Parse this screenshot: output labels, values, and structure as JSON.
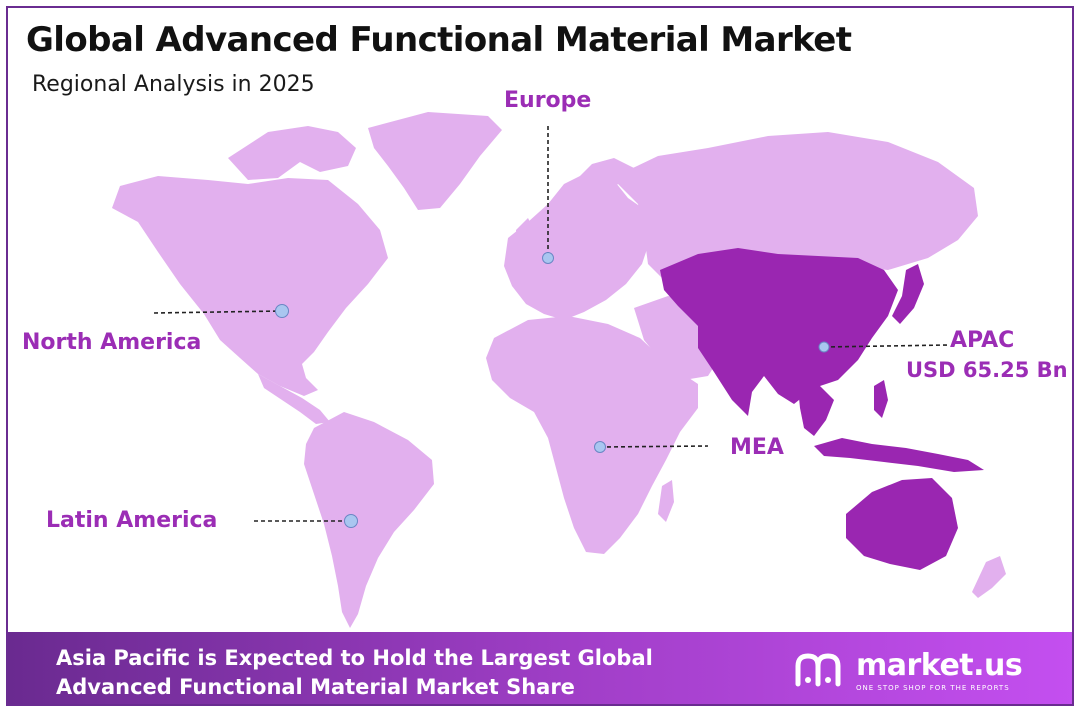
{
  "title": "Global Advanced Functional Material Market",
  "subtitle": "Regional Analysis in 2025",
  "regions": {
    "europe": "Europe",
    "north_america": "North America",
    "latin_america": "Latin America",
    "mea": "MEA",
    "apac": "APAC",
    "apac_value": "USD 65.25 Bn"
  },
  "highlighted_region": "APAC",
  "colors": {
    "land": "#e2b0ee",
    "highlight": "#9a26b1",
    "label": "#9b2db5",
    "border": "#6a2c91",
    "marker": "#a9c6f0"
  },
  "banner": {
    "line1": "Asia Pacific is Expected to Hold the Largest Global",
    "line2": "Advanced Functional Material Market Share"
  },
  "brand": {
    "name": "market.us",
    "tagline": "ONE STOP SHOP FOR THE REPORTS"
  }
}
